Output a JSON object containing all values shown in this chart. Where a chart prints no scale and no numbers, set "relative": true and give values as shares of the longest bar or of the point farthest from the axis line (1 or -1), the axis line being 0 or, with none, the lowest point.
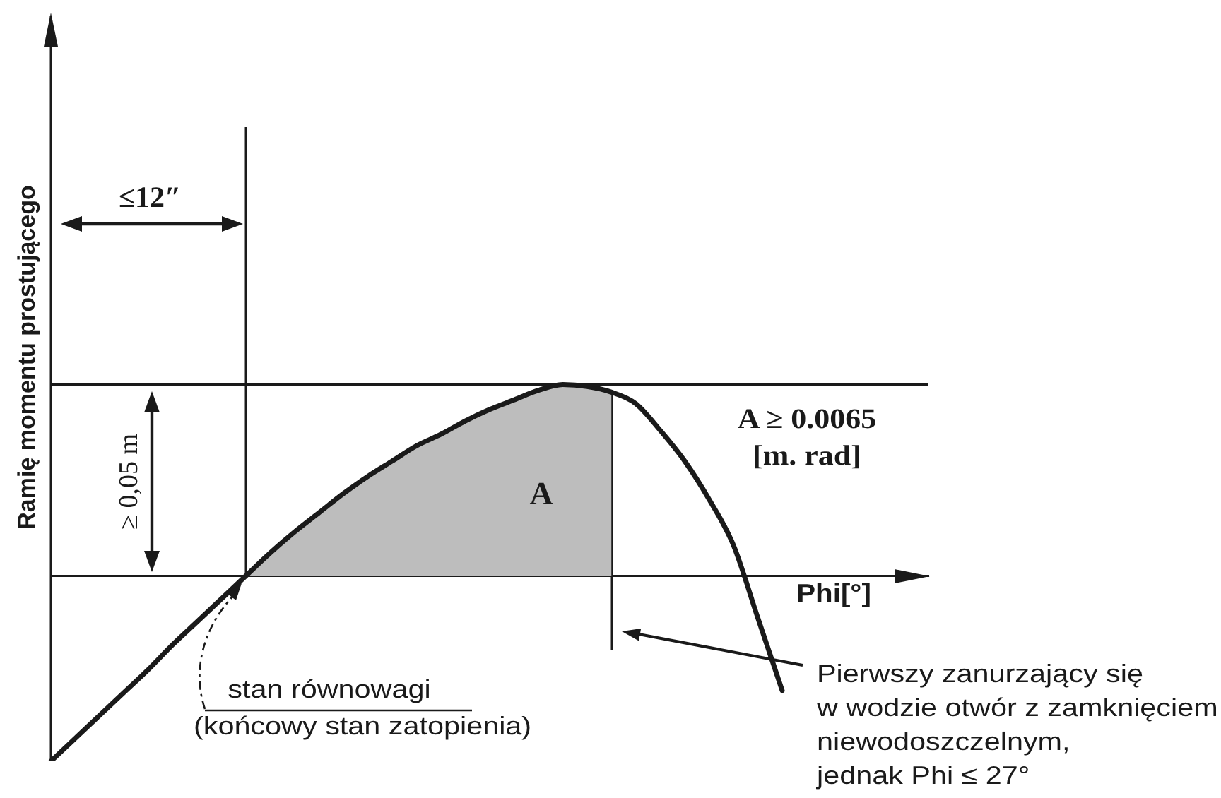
{
  "chart_data": {
    "type": "line",
    "relative": true,
    "xlabel": "Phi[°]",
    "ylabel": "Ramię momentu prostującego",
    "categories": [
      null,
      null,
      null,
      null,
      null,
      null,
      null,
      null,
      null,
      null,
      null,
      null,
      null,
      null,
      null,
      null,
      null,
      null,
      null,
      null,
      null,
      null,
      null,
      null,
      null,
      null,
      null,
      null,
      null,
      null,
      null,
      null,
      null,
      null,
      null,
      null,
      null
    ],
    "series": [
      {
        "color": "#1a1a1a",
        "values": [
          -0.97,
          -0.85,
          -0.73,
          -0.61,
          -0.49,
          -0.36,
          -0.24,
          -0.12,
          0,
          0.12,
          0.23,
          0.33,
          0.43,
          0.52,
          0.6,
          0.68,
          0.74,
          0.81,
          0.87,
          0.92,
          0.97,
          1,
          0.99,
          0.96,
          0.9,
          0.76,
          0.6,
          0.4,
          0.16,
          -0.22,
          -0.6,
          null,
          null,
          null,
          null,
          null,
          null
        ]
      },
      {
        "type": "area",
        "color": "#bdbdbd",
        "values": [
          null,
          null,
          null,
          null,
          null,
          null,
          null,
          null,
          0,
          0.12,
          0.23,
          0.33,
          0.43,
          0.52,
          0.6,
          0.68,
          0.74,
          0.81,
          0.87,
          0.92,
          0.97,
          1,
          0.99,
          0.96,
          null,
          null,
          null,
          null,
          null,
          null,
          null,
          null,
          null,
          null,
          null,
          null,
          null
        ]
      }
    ],
    "ref_lines": [
      {
        "axis": "y",
        "value": 1,
        "color": "#1a1a1a"
      }
    ],
    "annotations": [
      "≤12″",
      "≥ 0,05 m",
      "A",
      "A ≥ 0.0065\n[m. rad]",
      "stan równowagi\n(końcowy stan zatopienia)",
      "Pierwszy zanurzający się\nw wodzie otwór z zamknięciem\nniewodoszczelnym,\njednak Phi ≤ 27°"
    ]
  }
}
